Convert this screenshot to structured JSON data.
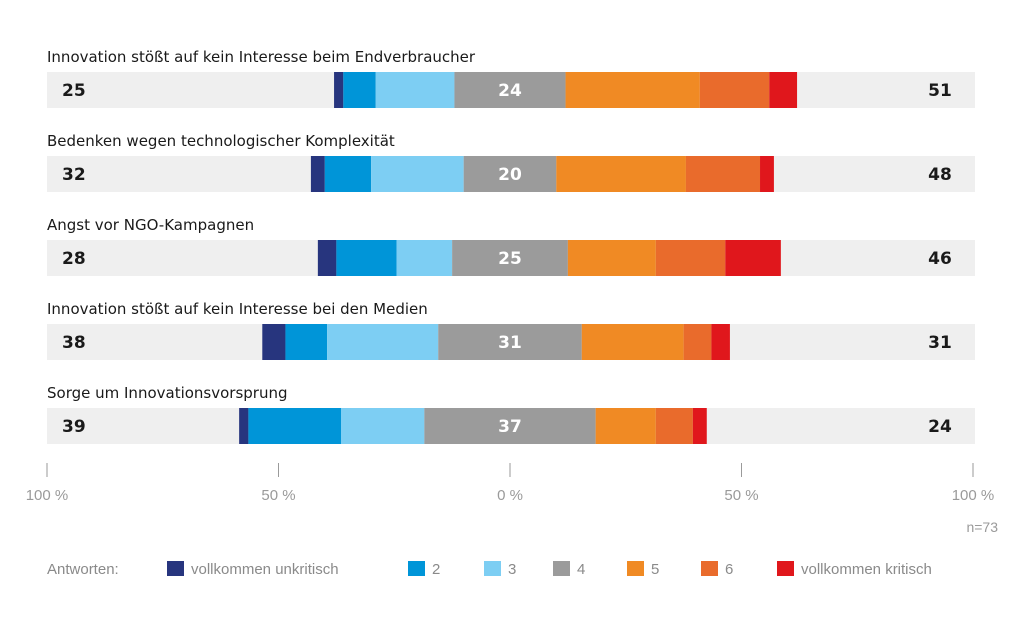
{
  "chart_data": {
    "type": "bar",
    "stacked": "diverging",
    "categories": [
      "Innovation stößt auf kein Interesse beim Endverbraucher",
      "Bedenken wegen technologischer Komplexität",
      "Angst vor NGO-Kampagnen",
      "Innovation stößt auf kein Interesse bei den Medien",
      "Sorge um Innovationsvorsprung"
    ],
    "left_totals": [
      "25",
      "32",
      "28",
      "38",
      "39"
    ],
    "middle_values": [
      "24",
      "20",
      "25",
      "31",
      "37"
    ],
    "right_totals": [
      "51",
      "48",
      "46",
      "31",
      "24"
    ],
    "series": [
      {
        "name": "vollkommen unkritisch",
        "color": "#27357e",
        "values": [
          2,
          3,
          4,
          5,
          2
        ]
      },
      {
        "name": "2",
        "color": "#0095d8",
        "values": [
          7,
          10,
          13,
          9,
          20
        ]
      },
      {
        "name": "3",
        "color": "#7dcef3",
        "values": [
          17,
          20,
          12,
          24,
          18
        ]
      },
      {
        "name": "4",
        "color": "#9b9b9b",
        "values": [
          24,
          20,
          25,
          31,
          37
        ]
      },
      {
        "name": "5",
        "color": "#f08a24",
        "values": [
          29,
          28,
          19,
          22,
          13
        ]
      },
      {
        "name": "6",
        "color": "#e96b2c",
        "values": [
          15,
          16,
          15,
          6,
          8
        ]
      },
      {
        "name": "vollkommen kritisch",
        "color": "#e0171c",
        "values": [
          6,
          3,
          12,
          4,
          3
        ]
      }
    ],
    "xticks": [
      "100 %",
      "50 %",
      "0 %",
      "50 %",
      "100 %"
    ],
    "xlim": [
      -100,
      100
    ],
    "note": "n=73",
    "legend_title": "Antworten:",
    "legend_position": "bottom"
  }
}
